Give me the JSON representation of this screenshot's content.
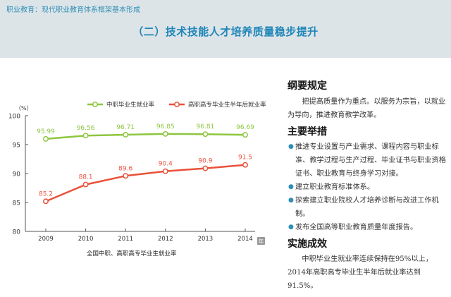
{
  "header": {
    "breadcrumb": "职业教育：现代职业教育体系框架基本形成",
    "title": "（二）技术技能人才培养质量稳步提升"
  },
  "chart_data": {
    "type": "line",
    "y_unit_label": "（%）",
    "x_unit_label": "年",
    "xlabel": "全国中职、高职高专毕业生就业率",
    "categories": [
      "2009",
      "2010",
      "2011",
      "2012",
      "2013",
      "2014"
    ],
    "ylim": [
      80,
      100
    ],
    "yticks": [
      "80",
      "85",
      "90",
      "95",
      "100"
    ],
    "legend_position": "top",
    "grid": false,
    "series": [
      {
        "name": "中职毕业生就业率",
        "color": "#8dc63f",
        "values": [
          95.99,
          96.56,
          96.71,
          96.85,
          96.81,
          96.69
        ],
        "labels": [
          "95.99",
          "96.56",
          "96.71",
          "96.85",
          "96.81",
          "96.69"
        ]
      },
      {
        "name": "高职高专毕业生半年后就业率",
        "color": "#e9513a",
        "values": [
          85.2,
          88.1,
          89.6,
          90.4,
          90.9,
          91.5
        ],
        "labels": [
          "85.2",
          "88.1",
          "89.6",
          "90.4",
          "90.9",
          "91.5"
        ]
      }
    ]
  },
  "sections": {
    "s1_title": "纲要规定",
    "s1_text": "把提高质量作为重点。以服务为宗旨，以就业为导向，推进教育教学改革。",
    "s2_title": "主要举措",
    "s2_items": [
      "推进专业设置与产业需求、课程内容与职业标准、教学过程与生产过程、毕业证书与职业资格证书、职业教育与终身学习对接。",
      "建立职业教育标准体系。",
      "探索建立职业院校人才培养诊断与改进工作机制。",
      "发布全国高等职业教育质量年度报告。"
    ],
    "s3_title": "实施成效",
    "s3_text": "中职毕业生就业率连续保持在95%以上，2014年高职高专毕业生半年后就业率达到91.5%。"
  }
}
